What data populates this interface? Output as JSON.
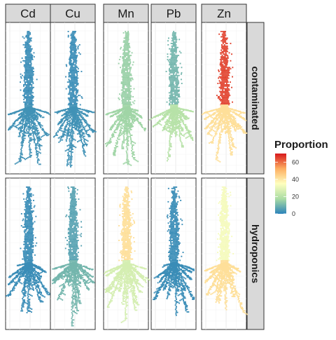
{
  "chart_data": {
    "type": "heatmap",
    "title": "",
    "xlabel": "",
    "ylabel": "",
    "columns": [
      "Cd",
      "Cu",
      "Mn",
      "Pb",
      "Zn"
    ],
    "rows": [
      "contaminated",
      "hydroponics"
    ],
    "grid": true,
    "legend": {
      "title": "Proportion",
      "ticks": [
        "60",
        "40",
        "20",
        "0"
      ],
      "tick_values": [
        60,
        40,
        20,
        0
      ],
      "range": [
        0,
        70
      ],
      "placement": "right",
      "palette": [
        "#2b83ba",
        "#abdda4",
        "#ffffbf",
        "#fdae61",
        "#d7191c"
      ]
    },
    "panels": [
      {
        "row": "contaminated",
        "col": "Cd",
        "shoot": 2,
        "root": 3
      },
      {
        "row": "contaminated",
        "col": "Cu",
        "shoot": 2,
        "root": 3
      },
      {
        "row": "contaminated",
        "col": "Mn",
        "shoot": 15,
        "root": 16
      },
      {
        "row": "contaminated",
        "col": "Pb",
        "shoot": 10,
        "root": 20
      },
      {
        "row": "contaminated",
        "col": "Zn",
        "shoot": 65,
        "root": 42
      },
      {
        "row": "hydroponics",
        "col": "Cd",
        "shoot": 2,
        "root": 2
      },
      {
        "row": "hydroponics",
        "col": "Cu",
        "shoot": 6,
        "root": 10
      },
      {
        "row": "hydroponics",
        "col": "Mn",
        "shoot": 42,
        "root": 26
      },
      {
        "row": "hydroponics",
        "col": "Pb",
        "shoot": 2,
        "root": 2
      },
      {
        "row": "hydroponics",
        "col": "Zn",
        "shoot": 33,
        "root": 42
      }
    ]
  }
}
